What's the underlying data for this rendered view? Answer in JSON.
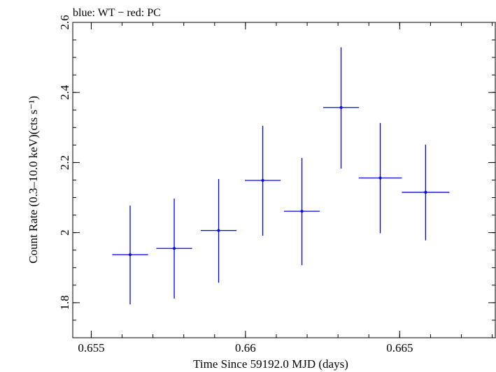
{
  "chart_data": {
    "type": "scatter",
    "title": "blue: WT − red: PC",
    "xlabel": "Time Since 59192.0 MJD (days)",
    "ylabel": "Count Rate (0.3–10.0 keV)(cts s⁻¹)",
    "xlim": [
      0.6544,
      0.6681
    ],
    "ylim": [
      1.7,
      2.6
    ],
    "x_ticks": [
      0.655,
      0.66,
      0.665
    ],
    "x_tick_labels": [
      "0.655",
      "0.66",
      "0.665"
    ],
    "y_ticks": [
      1.8,
      2,
      2.2,
      2.4,
      2.6
    ],
    "y_tick_labels": [
      "1.8",
      "2",
      "2.2",
      "2.4",
      "2.6"
    ],
    "grid": false,
    "series": [
      {
        "color": "#0000ff",
        "points": [
          {
            "x": 0.65626,
            "y": 1.937,
            "xerr": 0.00058,
            "y_low": 1.795,
            "y_high": 2.077
          },
          {
            "x": 0.65769,
            "y": 1.955,
            "xerr": 0.00058,
            "y_low": 1.812,
            "y_high": 2.097
          },
          {
            "x": 0.65913,
            "y": 2.006,
            "xerr": 0.00058,
            "y_low": 1.857,
            "y_high": 2.153
          },
          {
            "x": 0.66056,
            "y": 2.149,
            "xerr": 0.00058,
            "y_low": 1.991,
            "y_high": 2.305
          },
          {
            "x": 0.66183,
            "y": 2.061,
            "xerr": 0.00058,
            "y_low": 1.907,
            "y_high": 2.213
          },
          {
            "x": 0.6631,
            "y": 2.357,
            "xerr": 0.00058,
            "y_low": 2.183,
            "y_high": 2.529
          },
          {
            "x": 0.66437,
            "y": 2.156,
            "xerr": 0.0007,
            "y_low": 1.998,
            "y_high": 2.313
          },
          {
            "x": 0.66584,
            "y": 2.115,
            "xerr": 0.00077,
            "y_low": 1.978,
            "y_high": 2.251
          }
        ]
      }
    ]
  }
}
